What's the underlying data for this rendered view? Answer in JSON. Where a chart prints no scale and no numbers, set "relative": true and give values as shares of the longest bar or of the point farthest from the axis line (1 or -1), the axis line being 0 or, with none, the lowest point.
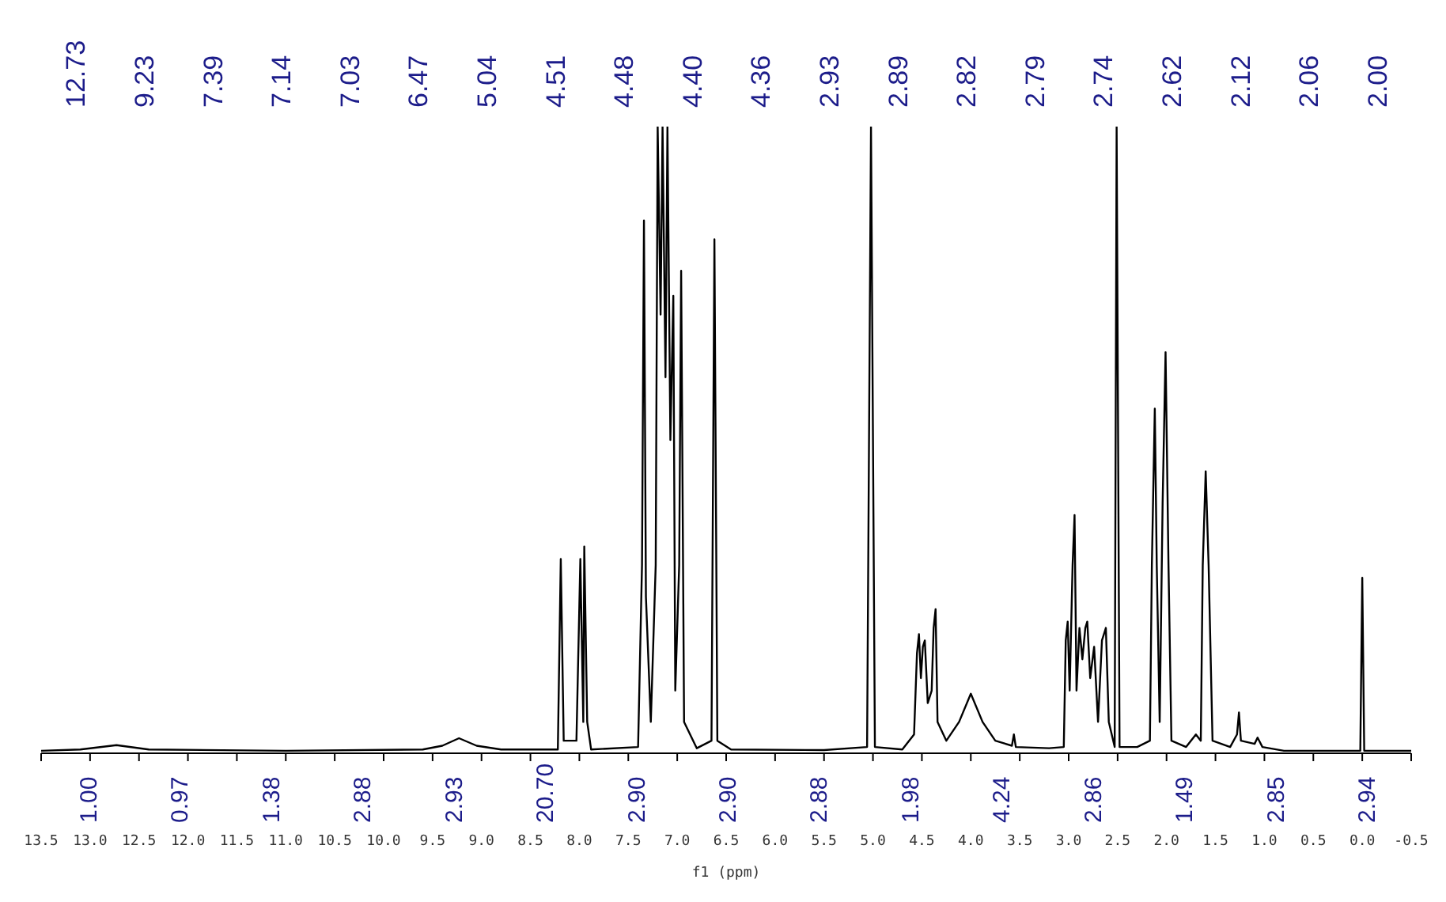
{
  "chart_data": {
    "type": "line",
    "relative": true,
    "xlabel": "f1 (ppm)",
    "grid": false,
    "legend": false,
    "marker": "none",
    "line_style": "solid",
    "xlim": [
      13.5,
      -0.5
    ],
    "xticks": [
      {
        "value": 13.5,
        "label": "13.5"
      },
      {
        "value": 13,
        "label": "13.0"
      },
      {
        "value": 12.5,
        "label": "12.5"
      },
      {
        "value": 12,
        "label": "12.0"
      },
      {
        "value": 11.5,
        "label": "11.5"
      },
      {
        "value": 11,
        "label": "11.0"
      },
      {
        "value": 10.5,
        "label": "10.5"
      },
      {
        "value": 10,
        "label": "10.0"
      },
      {
        "value": 9.5,
        "label": "9.5"
      },
      {
        "value": 9,
        "label": "9.0"
      },
      {
        "value": 8.5,
        "label": "8.5"
      },
      {
        "value": 8,
        "label": "8.0"
      },
      {
        "value": 7.5,
        "label": "7.5"
      },
      {
        "value": 7,
        "label": "7.0"
      },
      {
        "value": 6.5,
        "label": "6.5"
      },
      {
        "value": 6,
        "label": "6.0"
      },
      {
        "value": 5.5,
        "label": "5.5"
      },
      {
        "value": 5,
        "label": "5.0"
      },
      {
        "value": 4.5,
        "label": "4.5"
      },
      {
        "value": 4,
        "label": "4.0"
      },
      {
        "value": 3.5,
        "label": "3.5"
      },
      {
        "value": 3,
        "label": "3.0"
      },
      {
        "value": 2.5,
        "label": "2.5"
      },
      {
        "value": 2,
        "label": "2.0"
      },
      {
        "value": 1.5,
        "label": "1.5"
      },
      {
        "value": 1,
        "label": "1.0"
      },
      {
        "value": 0.5,
        "label": "0.5"
      },
      {
        "value": 0,
        "label": "0.0"
      },
      {
        "value": -0.5,
        "label": "-0.5"
      }
    ],
    "series": [
      {
        "color": "#000000",
        "x": [
          13.5,
          13.1,
          12.73,
          12.4,
          11.0,
          9.6,
          9.4,
          9.23,
          9.05,
          8.8,
          8.4,
          8.22,
          8.19,
          8.16,
          8.03,
          7.99,
          7.96,
          7.95,
          7.92,
          7.88,
          7.4,
          7.36,
          7.34,
          7.32,
          7.27,
          7.22,
          7.2,
          7.17,
          7.15,
          7.12,
          7.1,
          7.07,
          7.04,
          7.02,
          6.98,
          6.96,
          6.93,
          6.8,
          6.65,
          6.62,
          6.59,
          6.45,
          5.5,
          5.06,
          5.02,
          4.98,
          4.7,
          4.58,
          4.55,
          4.53,
          4.51,
          4.49,
          4.47,
          4.44,
          4.4,
          4.38,
          4.36,
          4.34,
          4.25,
          4.12,
          4.0,
          3.88,
          3.75,
          3.58,
          3.56,
          3.54,
          3.2,
          3.05,
          3.03,
          3.01,
          2.99,
          2.96,
          2.94,
          2.92,
          2.89,
          2.86,
          2.83,
          2.81,
          2.78,
          2.74,
          2.7,
          2.66,
          2.64,
          2.62,
          2.59,
          2.53,
          2.51,
          2.48,
          2.3,
          2.17,
          2.15,
          2.12,
          2.1,
          2.07,
          2.04,
          2.01,
          1.98,
          1.95,
          1.8,
          1.7,
          1.65,
          1.63,
          1.6,
          1.57,
          1.53,
          1.35,
          1.28,
          1.26,
          1.24,
          1.1,
          1.07,
          1.02,
          0.8,
          0.02,
          0.0,
          -0.02,
          -0.5
        ],
        "values": [
          0.004,
          0.006,
          0.013,
          0.006,
          0.004,
          0.006,
          0.012,
          0.024,
          0.012,
          0.006,
          0.006,
          0.006,
          0.31,
          0.02,
          0.02,
          0.31,
          0.05,
          0.33,
          0.05,
          0.006,
          0.01,
          0.3,
          0.85,
          0.25,
          0.05,
          0.3,
          1,
          0.7,
          1,
          0.6,
          1,
          0.5,
          0.73,
          0.1,
          0.3,
          0.77,
          0.05,
          0.008,
          0.02,
          0.82,
          0.02,
          0.006,
          0.005,
          0.01,
          1,
          0.01,
          0.006,
          0.03,
          0.16,
          0.19,
          0.12,
          0.17,
          0.18,
          0.08,
          0.1,
          0.2,
          0.23,
          0.05,
          0.02,
          0.05,
          0.095,
          0.05,
          0.02,
          0.012,
          0.03,
          0.01,
          0.008,
          0.01,
          0.18,
          0.21,
          0.1,
          0.3,
          0.38,
          0.1,
          0.2,
          0.15,
          0.2,
          0.21,
          0.12,
          0.17,
          0.05,
          0.18,
          0.19,
          0.2,
          0.05,
          0.01,
          1,
          0.01,
          0.01,
          0.02,
          0.3,
          0.55,
          0.3,
          0.05,
          0.4,
          0.64,
          0.3,
          0.02,
          0.01,
          0.03,
          0.02,
          0.3,
          0.45,
          0.3,
          0.02,
          0.01,
          0.03,
          0.065,
          0.02,
          0.015,
          0.025,
          0.01,
          0.004,
          0.004,
          0.28,
          0.004,
          0.004
        ]
      }
    ],
    "annotations": [
      "12.73",
      "9.23",
      "7.39",
      "7.14",
      "7.03",
      "6.47",
      "5.04",
      "4.51",
      "4.48",
      "4.40",
      "4.36",
      "2.93",
      "2.89",
      "2.82",
      "2.79",
      "2.74",
      "2.62",
      "2.12",
      "2.06",
      "2.00",
      "1.00",
      "0.97",
      "1.38",
      "2.88",
      "2.93",
      "20.70",
      "2.90",
      "2.90",
      "2.88",
      "1.98",
      "4.24",
      "2.86",
      "1.49",
      "2.85",
      "2.94"
    ]
  }
}
